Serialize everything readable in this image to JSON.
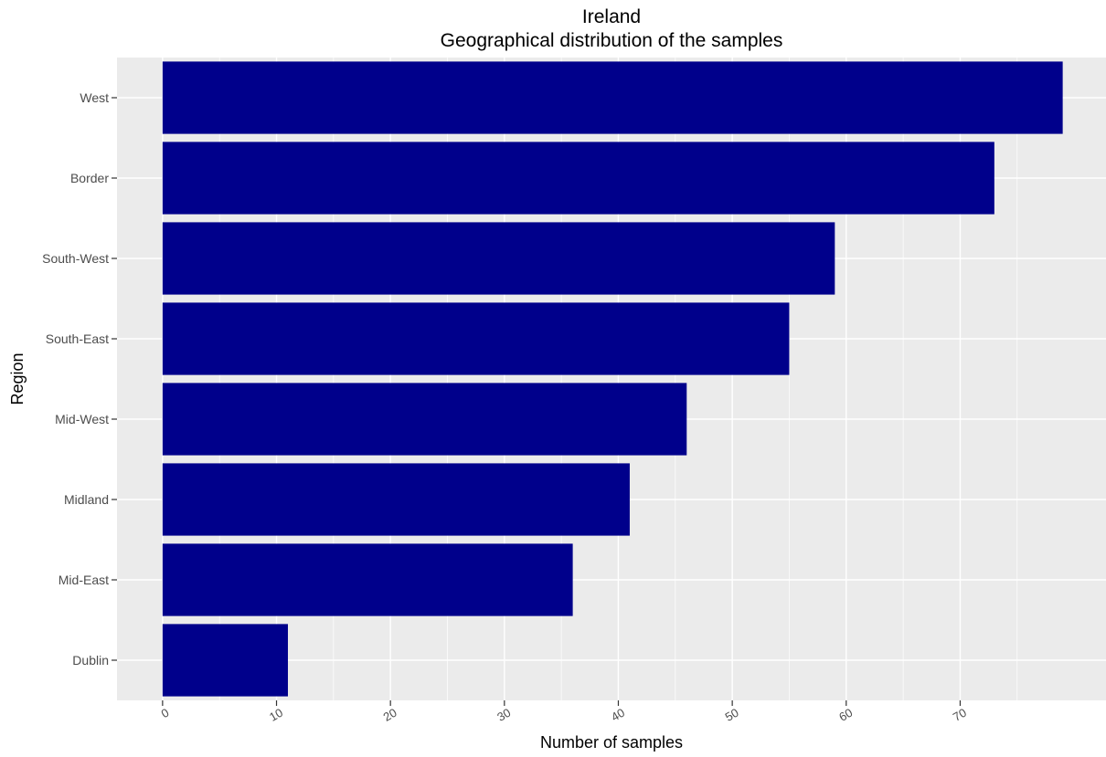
{
  "chart_data": {
    "type": "bar",
    "orientation": "horizontal",
    "title": "Ireland",
    "subtitle": "Geographical distribution of the samples",
    "xlabel": "Number of samples",
    "ylabel": "Region",
    "categories": [
      "West",
      "Border",
      "South-West",
      "South-East",
      "Mid-West",
      "Midland",
      "Mid-East",
      "Dublin"
    ],
    "values": [
      79,
      73,
      59,
      55,
      46,
      41,
      36,
      11
    ],
    "xlim": [
      -4,
      82.8
    ],
    "xticks": [
      0,
      10,
      20,
      30,
      40,
      50,
      60,
      70
    ],
    "xtick_labels": [
      "0",
      "10",
      "20",
      "30",
      "40",
      "50",
      "60",
      "70"
    ],
    "grid": true,
    "panel_color": "#ebebeb",
    "bar_color": "#00008b",
    "grid_color": "#ffffff"
  }
}
